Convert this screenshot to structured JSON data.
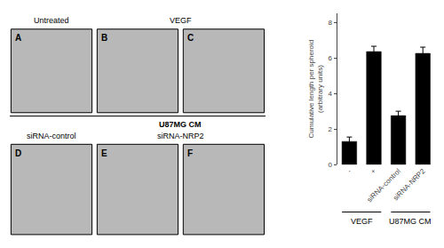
{
  "chart_data": {
    "type": "bar",
    "ylabel": "Cumulative length per spheroid\n(arbitrary units)",
    "categories": [
      "-",
      "+",
      "siRNA-control",
      "siRNA-NRP2"
    ],
    "values": [
      1.3,
      6.35,
      2.75,
      6.25
    ],
    "errors": [
      0.25,
      0.3,
      0.25,
      0.35
    ],
    "color": "#000000",
    "ylim": [
      0,
      8.5
    ],
    "yticks": [
      0,
      2,
      4,
      6,
      8
    ],
    "grid": false,
    "annotations": [
      "VEGF",
      "U87MG CM",
      "A",
      "B",
      "C",
      "D",
      "E",
      "F",
      "Untreated",
      "VEGF",
      "U87MG CM",
      "siRNA-control",
      "siRNA-NRP2"
    ]
  }
}
